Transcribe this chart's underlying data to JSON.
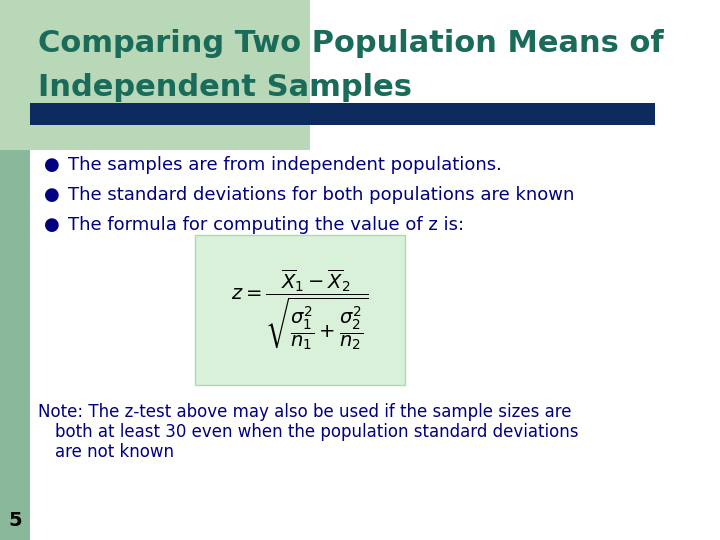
{
  "title_line1": "Comparing Two Population Means of",
  "title_line2": "Independent Samples",
  "title_color": "#1a6b5a",
  "title_fontsize": 22,
  "header_bar_color": "#0d2b5e",
  "left_bar_color": "#8ab89a",
  "left_bar_top_color": "#a8c8a8",
  "bullet_points": [
    "The samples are from independent populations.",
    "The standard deviations for both populations are known",
    "The formula for computing the value of z is:"
  ],
  "bullet_color": "#000080",
  "bullet_fontsize": 13,
  "note_fontsize": 12,
  "note_color": "#000080",
  "formula_bg_color": "#d9f0d9",
  "slide_number": "5",
  "background_color": "#ffffff"
}
